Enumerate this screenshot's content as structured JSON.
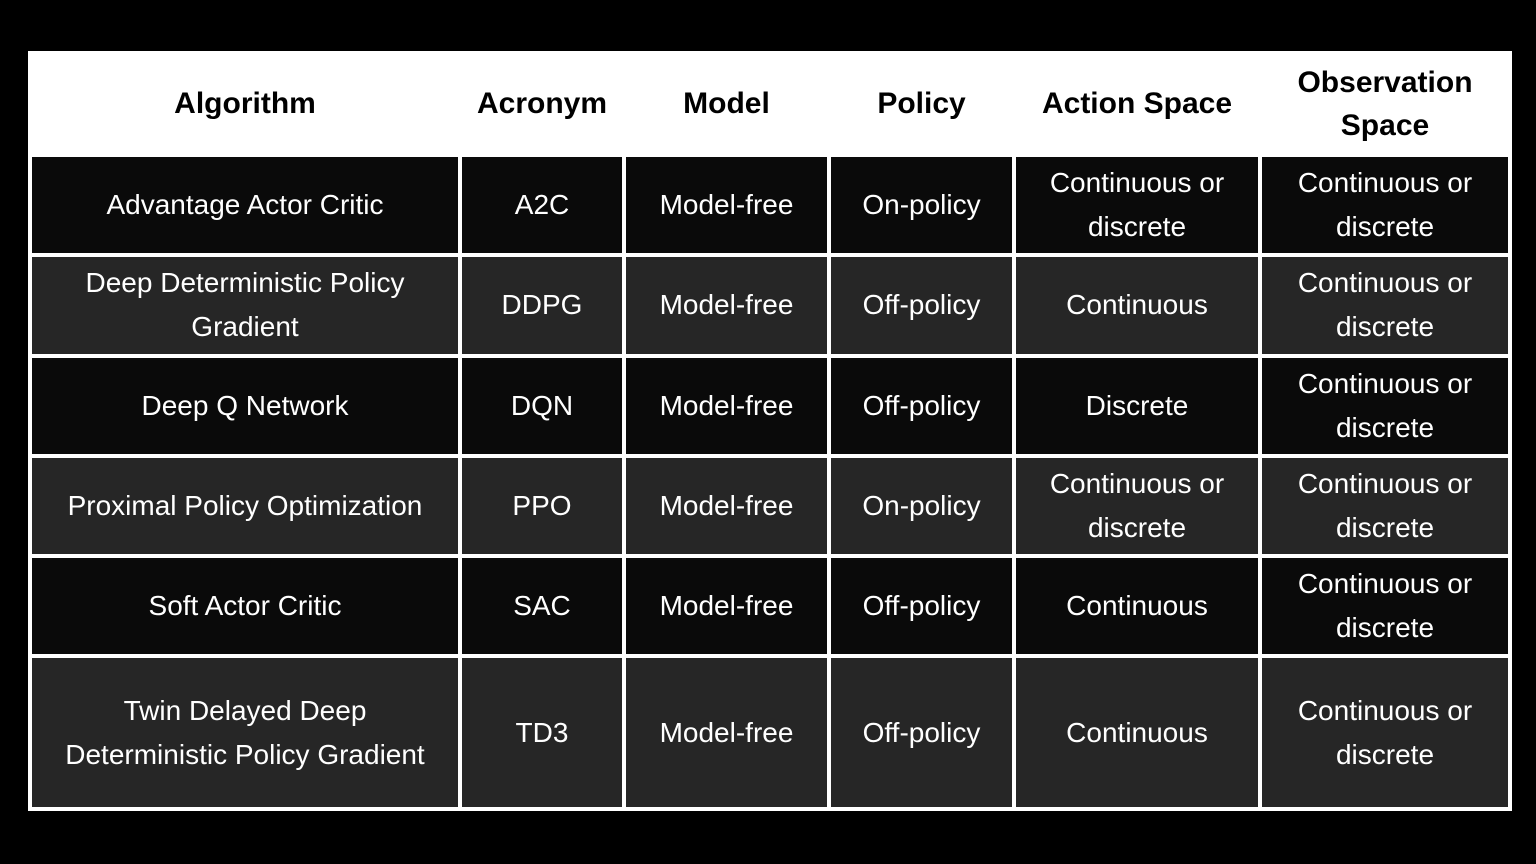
{
  "page": {
    "background_color": "#000000"
  },
  "table": {
    "columns": [
      "Algorithm",
      "Acronym",
      "Model",
      "Policy",
      "Action Space",
      "Observation Space"
    ],
    "rows": [
      {
        "algorithm": "Advantage Actor Critic",
        "acronym": "A2C",
        "model": "Model-free",
        "policy": "On-policy",
        "action_space": "Continuous or discrete",
        "observation_space": "Continuous or discrete"
      },
      {
        "algorithm": "Deep Deterministic Policy Gradient",
        "acronym": "DDPG",
        "model": "Model-free",
        "policy": "Off-policy",
        "action_space": "Continuous",
        "observation_space": "Continuous or discrete"
      },
      {
        "algorithm": "Deep Q Network",
        "acronym": "DQN",
        "model": "Model-free",
        "policy": "Off-policy",
        "action_space": "Discrete",
        "observation_space": "Continuous or discrete"
      },
      {
        "algorithm": "Proximal Policy Optimization",
        "acronym": "PPO",
        "model": "Model-free",
        "policy": "On-policy",
        "action_space": "Continuous or discrete",
        "observation_space": "Continuous or discrete"
      },
      {
        "algorithm": "Soft Actor Critic",
        "acronym": "SAC",
        "model": "Model-free",
        "policy": "Off-policy",
        "action_space": "Continuous",
        "observation_space": "Continuous or discrete"
      },
      {
        "algorithm": "Twin Delayed Deep Deterministic Policy Gradient",
        "acronym": "TD3",
        "model": "Model-free",
        "policy": "Off-policy",
        "action_space": "Continuous",
        "observation_space": "Continuous or discrete"
      }
    ],
    "colors": {
      "header_bg": "#ffffff",
      "header_text": "#000000",
      "row_bg_odd": "#0a0a0a",
      "row_bg_even": "#262626",
      "body_text": "#ffffff",
      "border": "#ffffff"
    }
  }
}
